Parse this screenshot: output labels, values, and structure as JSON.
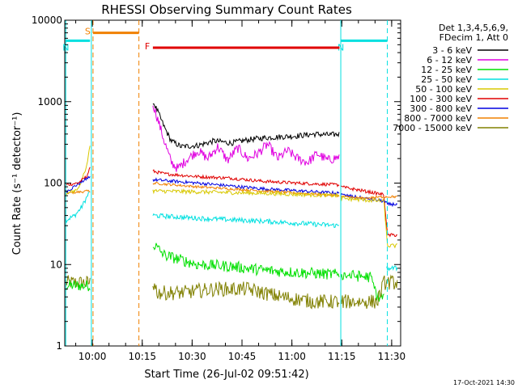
{
  "chart_data": {
    "type": "line",
    "title": "RHESSI Observing Summary Count Rates",
    "xlabel": "Start Time (26-Jul-02 09:51:42)",
    "ylabel": "Count Rate (s⁻¹ detector⁻¹)",
    "y_scale": "log",
    "ylim": [
      1,
      10000
    ],
    "xlim_minutes_after_0951": [
      0,
      101
    ],
    "x_ticks": [
      {
        "label": "10:00",
        "t": 8.3
      },
      {
        "label": "10:15",
        "t": 23.3
      },
      {
        "label": "10:30",
        "t": 38.3
      },
      {
        "label": "10:45",
        "t": 53.3
      },
      {
        "label": "11:00",
        "t": 68.3
      },
      {
        "label": "11:15",
        "t": 83.3
      },
      {
        "label": "11:30",
        "t": 98.3
      }
    ],
    "y_ticks": [
      {
        "label": "1",
        "v": 1
      },
      {
        "label": "10",
        "v": 10
      },
      {
        "label": "100",
        "v": 100
      },
      {
        "label": "1000",
        "v": 1000
      },
      {
        "label": "10000",
        "v": 10000
      }
    ],
    "legend": {
      "placement": "right",
      "header": [
        "Det 1,3,4,5,6,9,",
        "FDecim 1, Att 0"
      ]
    },
    "series": [
      {
        "name": "3 - 6 keV",
        "color": "#000000"
      },
      {
        "name": "6 - 12 keV",
        "color": "#e000e0"
      },
      {
        "name": "12 - 25 keV",
        "color": "#00e000"
      },
      {
        "name": "25 - 50 keV",
        "color": "#00e0e0"
      },
      {
        "name": "50 - 100 keV",
        "color": "#d8c800"
      },
      {
        "name": "100 - 300 keV",
        "color": "#e00000"
      },
      {
        "name": "300 - 800 keV",
        "color": "#0000e0"
      },
      {
        "name": "800 - 7000 keV",
        "color": "#f08000"
      },
      {
        "name": "7000 - 15000 keV",
        "color": "#808000"
      }
    ],
    "flags": [
      {
        "label": "S",
        "color": "#f08000",
        "start": 8.5,
        "end": 22.3,
        "level": 7000
      },
      {
        "label": "N",
        "color": "#00e0e0",
        "start": 0.3,
        "end": 7.6,
        "level": 5600
      },
      {
        "label": "N",
        "color": "#00e0e0",
        "start": 83.0,
        "end": 97.0,
        "level": 5600
      },
      {
        "label": "F",
        "color": "#e00000",
        "start": 26.5,
        "end": 82.6,
        "level": 4600
      }
    ],
    "boundaries": [
      {
        "t": 0.3,
        "color": "#00e0e0",
        "style": "solid"
      },
      {
        "t": 8.0,
        "color": "#00e0e0",
        "style": "solid"
      },
      {
        "t": 8.5,
        "color": "#f08000",
        "style": "dashed"
      },
      {
        "t": 22.3,
        "color": "#f08000",
        "style": "dashed"
      },
      {
        "t": 83.0,
        "color": "#00e0e0",
        "style": "solid"
      },
      {
        "t": 97.0,
        "color": "#00e0e0",
        "style": "dashed"
      }
    ],
    "segments": [
      {
        "start": 0.3,
        "end": 8.0,
        "points": {
          "7000 - 15000 keV": [
            [
              0.3,
              6
            ],
            [
              7.6,
              6
            ]
          ],
          "12 - 25 keV": [
            [
              0.3,
              5.5
            ],
            [
              7.6,
              5.5
            ]
          ],
          "25 - 50 keV": [
            [
              0.3,
              35
            ],
            [
              3,
              40
            ],
            [
              5,
              50
            ],
            [
              7.6,
              80
            ]
          ],
          "800 - 7000 keV": [
            [
              0.3,
              75
            ],
            [
              7.6,
              80
            ]
          ],
          "50 - 100 keV": [
            [
              0.3,
              72
            ],
            [
              4,
              85
            ],
            [
              6.5,
              150
            ],
            [
              7.6,
              300
            ]
          ],
          "300 - 800 keV": [
            [
              0.3,
              78
            ],
            [
              7.6,
              120
            ]
          ],
          "100 - 300 keV": [
            [
              0.3,
              95
            ],
            [
              4,
              100
            ],
            [
              6.5,
              120
            ],
            [
              7.6,
              150
            ]
          ]
        }
      },
      {
        "start": 26.5,
        "end": 83.0,
        "points": {
          "3 - 6 keV": [
            [
              26.5,
              1000
            ],
            [
              28,
              750
            ],
            [
              30,
              480
            ],
            [
              32,
              330
            ],
            [
              35,
              280
            ],
            [
              40,
              290
            ],
            [
              45,
              330
            ],
            [
              50,
              310
            ],
            [
              55,
              340
            ],
            [
              60,
              360
            ],
            [
              65,
              370
            ],
            [
              70,
              380
            ],
            [
              75,
              400
            ],
            [
              80,
              390
            ],
            [
              82.5,
              400
            ]
          ],
          "6 - 12 keV": [
            [
              26.5,
              950
            ],
            [
              28,
              600
            ],
            [
              30,
              320
            ],
            [
              32,
              180
            ],
            [
              34,
              150
            ],
            [
              37,
              200
            ],
            [
              40,
              250
            ],
            [
              43,
              200
            ],
            [
              46,
              280
            ],
            [
              49,
              190
            ],
            [
              52,
              270
            ],
            [
              55,
              200
            ],
            [
              58,
              230
            ],
            [
              61,
              300
            ],
            [
              64,
              200
            ],
            [
              67,
              250
            ],
            [
              70,
              200
            ],
            [
              73,
              180
            ],
            [
              76,
              230
            ],
            [
              79,
              190
            ],
            [
              82.5,
              210
            ]
          ],
          "100 - 300 keV": [
            [
              26.5,
              140
            ],
            [
              30,
              130
            ],
            [
              40,
              120
            ],
            [
              50,
              115
            ],
            [
              60,
              105
            ],
            [
              70,
              100
            ],
            [
              82.5,
              95
            ]
          ],
          "300 - 800 keV": [
            [
              26.5,
              110
            ],
            [
              40,
              100
            ],
            [
              60,
              85
            ],
            [
              82.5,
              75
            ]
          ],
          "800 - 7000 keV": [
            [
              26.5,
              100
            ],
            [
              40,
              90
            ],
            [
              60,
              80
            ],
            [
              82.5,
              70
            ]
          ],
          "50 - 100 keV": [
            [
              26.5,
              80
            ],
            [
              40,
              78
            ],
            [
              60,
              75
            ],
            [
              82.5,
              70
            ]
          ],
          "25 - 50 keV": [
            [
              26.5,
              40
            ],
            [
              40,
              37
            ],
            [
              60,
              34
            ],
            [
              82.5,
              30
            ]
          ],
          "12 - 25 keV": [
            [
              26.5,
              18
            ],
            [
              30,
              13
            ],
            [
              40,
              10
            ],
            [
              50,
              9.5
            ],
            [
              60,
              8.5
            ],
            [
              70,
              8
            ],
            [
              82.5,
              7.5
            ]
          ],
          "7000 - 15000 keV": [
            [
              26.5,
              6
            ],
            [
              28,
              4.5
            ],
            [
              35,
              4.5
            ],
            [
              45,
              5
            ],
            [
              55,
              5
            ],
            [
              65,
              4
            ],
            [
              75,
              3.5
            ],
            [
              82.5,
              3.5
            ]
          ]
        }
      },
      {
        "start": 83.0,
        "end": 100.0,
        "points": {
          "100 - 300 keV": [
            [
              83,
              90
            ],
            [
              90,
              80
            ],
            [
              96,
              72
            ],
            [
              97,
              23
            ],
            [
              100,
              23
            ]
          ],
          "300 - 800 keV": [
            [
              83,
              72
            ],
            [
              90,
              65
            ],
            [
              96,
              60
            ],
            [
              97,
              55
            ],
            [
              100,
              55
            ]
          ],
          "800 - 7000 keV": [
            [
              83,
              68
            ],
            [
              90,
              65
            ],
            [
              96,
              68
            ],
            [
              100,
              68
            ]
          ],
          "50 - 100 keV": [
            [
              83,
              65
            ],
            [
              90,
              62
            ],
            [
              96,
              60
            ],
            [
              97,
              17
            ],
            [
              100,
              17
            ]
          ],
          "25 - 50 keV": [
            [
              96.8,
              9
            ],
            [
              100,
              9
            ]
          ],
          "12 - 25 keV": [
            [
              83,
              7.5
            ],
            [
              92,
              7
            ],
            [
              94,
              4
            ],
            [
              96,
              4
            ]
          ],
          "7000 - 15000 keV": [
            [
              83,
              3.5
            ],
            [
              94,
              3.5
            ],
            [
              96,
              6
            ],
            [
              100,
              6
            ]
          ]
        }
      }
    ]
  },
  "footer": {
    "timestamp": "17-Oct-2021 14:30"
  }
}
